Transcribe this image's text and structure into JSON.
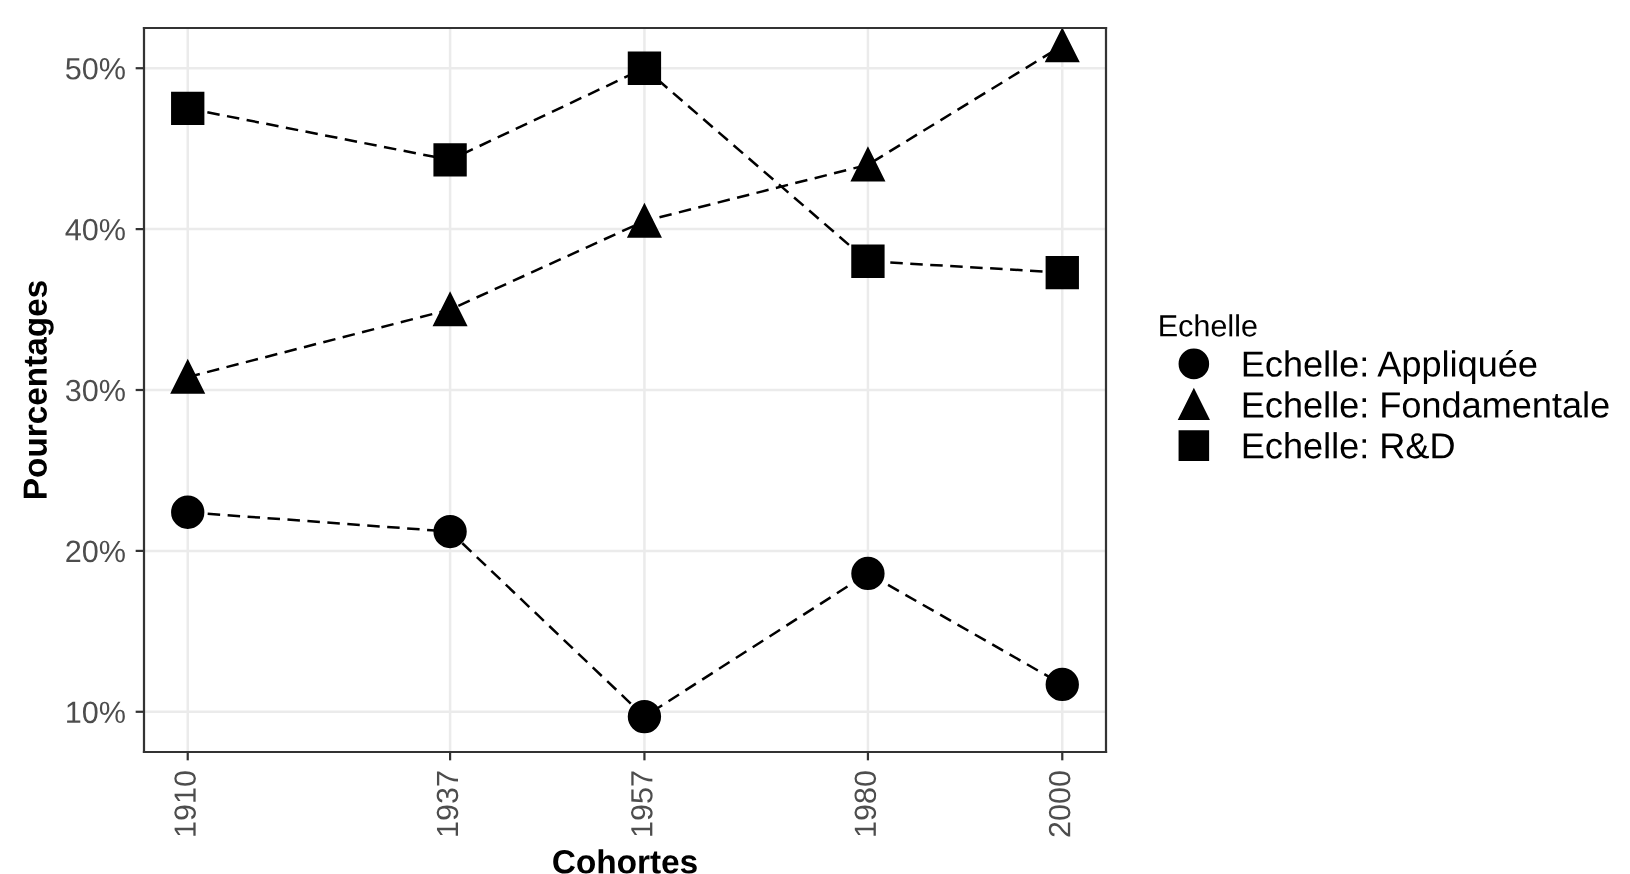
{
  "chart_data": {
    "type": "line",
    "xlabel": "Cohortes",
    "ylabel": "Pourcentages",
    "legend_title": "Echelle",
    "legend": "right",
    "grid": true,
    "line_style": "dashed",
    "x": [
      1910,
      1937,
      1957,
      1980,
      2000
    ],
    "xlim": [
      1905.5,
      2004.5
    ],
    "xticks": [
      1910,
      1937,
      1957,
      1980,
      2000
    ],
    "ylim": [
      7.5,
      52.5
    ],
    "yticks": [
      {
        "value": 10,
        "label": "10%"
      },
      {
        "value": 20,
        "label": "20%"
      },
      {
        "value": 30,
        "label": "30%"
      },
      {
        "value": 40,
        "label": "40%"
      },
      {
        "value": 50,
        "label": "50%"
      }
    ],
    "series": [
      {
        "name": "Echelle: Appliquée",
        "color": "#000000",
        "marker": "circle",
        "values": [
          22.4,
          21.2,
          9.7,
          18.6,
          11.7
        ]
      },
      {
        "name": "Echelle: Fondamentale",
        "color": "#000000",
        "marker": "triangle",
        "values": [
          30.8,
          35.0,
          40.5,
          44.0,
          51.4
        ]
      },
      {
        "name": "Echelle: R&D",
        "color": "#000000",
        "marker": "square",
        "values": [
          47.5,
          44.3,
          50.0,
          38.0,
          37.3
        ]
      }
    ]
  }
}
